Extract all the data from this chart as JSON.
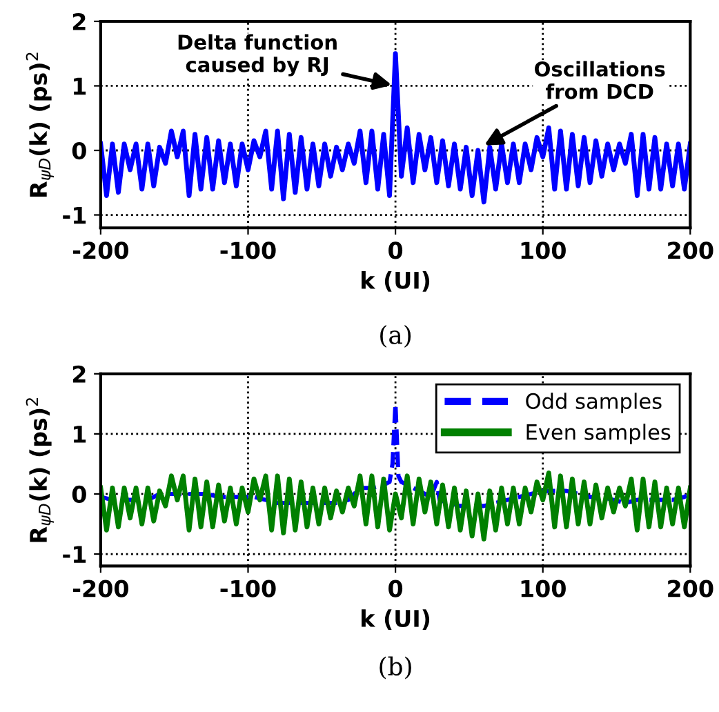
{
  "chart_data": [
    {
      "type": "line",
      "xlabel": "k (UI)",
      "ylabel": "R$_{ψD}$(k) (ps)$^{2}$",
      "xlim": [
        -200,
        200
      ],
      "xticks": [
        -200,
        -100,
        0,
        100,
        200
      ],
      "ylim": [
        -1.2,
        2
      ],
      "yticks": [
        -1,
        0,
        1,
        2
      ],
      "grid": true,
      "line_style": "solid",
      "series": [
        {
          "color": "#0000ff",
          "x": [
            -200,
            -196,
            -192,
            -188,
            -184,
            -180,
            -176,
            -172,
            -168,
            -164,
            -160,
            -156,
            -152,
            -148,
            -144,
            -140,
            -136,
            -132,
            -128,
            -124,
            -120,
            -116,
            -112,
            -108,
            -104,
            -100,
            -96,
            -92,
            -88,
            -84,
            -80,
            -76,
            -72,
            -68,
            -64,
            -60,
            -56,
            -52,
            -48,
            -44,
            -40,
            -36,
            -32,
            -28,
            -24,
            -20,
            -16,
            -12,
            -8,
            -4,
            0,
            4,
            8,
            12,
            16,
            20,
            24,
            28,
            32,
            36,
            40,
            44,
            48,
            52,
            56,
            60,
            64,
            68,
            72,
            76,
            80,
            84,
            88,
            92,
            96,
            100,
            104,
            108,
            112,
            116,
            120,
            124,
            128,
            132,
            136,
            140,
            144,
            148,
            152,
            156,
            160,
            164,
            168,
            172,
            176,
            180,
            184,
            188,
            192,
            196,
            200
          ],
          "values": [
            0.1,
            -0.7,
            0.1,
            -0.65,
            0.1,
            -0.3,
            0.1,
            -0.6,
            0.1,
            -0.55,
            0.05,
            -0.2,
            0.3,
            -0.1,
            0.3,
            -0.7,
            0.25,
            -0.6,
            0.2,
            -0.6,
            0.15,
            -0.5,
            0.1,
            -0.55,
            0.1,
            -0.3,
            0.15,
            -0.1,
            0.3,
            -0.6,
            0.3,
            -0.75,
            0.25,
            -0.65,
            0.2,
            -0.6,
            0.1,
            -0.55,
            0.1,
            -0.4,
            0.05,
            -0.3,
            0.1,
            -0.2,
            0.3,
            -0.5,
            0.3,
            -0.6,
            0.25,
            -0.7,
            1.5,
            -0.4,
            0.35,
            -0.5,
            0.25,
            -0.3,
            0.2,
            -0.5,
            0.15,
            -0.55,
            0.1,
            -0.6,
            0.05,
            -0.7,
            0.0,
            -0.8,
            0.05,
            -0.6,
            0.1,
            -0.5,
            0.1,
            -0.5,
            0.1,
            -0.3,
            0.2,
            -0.1,
            0.35,
            -0.6,
            0.3,
            -0.6,
            0.25,
            -0.55,
            0.2,
            -0.5,
            0.15,
            -0.4,
            0.1,
            -0.3,
            0.1,
            -0.2,
            0.25,
            -0.7,
            0.25,
            -0.6,
            0.2,
            -0.6,
            0.1,
            -0.55,
            0.1,
            -0.6,
            0.1
          ]
        }
      ],
      "annotations": [
        {
          "text": "Delta function\ncaused by RJ",
          "x": 0,
          "y": 1
        },
        {
          "text": "Oscillations\nfrom DCD",
          "x": 58,
          "y": 0.05
        },
        "(a)"
      ]
    },
    {
      "type": "line",
      "xlabel": "k (UI)",
      "ylabel": "R$_{ψD}$(k) (ps)$^{2}$",
      "xlim": [
        -200,
        200
      ],
      "xticks": [
        -200,
        -100,
        0,
        100,
        200
      ],
      "ylim": [
        -1.2,
        2
      ],
      "yticks": [
        -1,
        0,
        1,
        2
      ],
      "grid": true,
      "legend": "top right",
      "series": [
        {
          "name": "Odd samples",
          "color": "#0000ff",
          "line_style": "dashed",
          "x": [
            -200,
            -192,
            -184,
            -176,
            -168,
            -160,
            -152,
            -144,
            -136,
            -128,
            -120,
            -112,
            -104,
            -96,
            -88,
            -80,
            -72,
            -64,
            -56,
            -48,
            -40,
            -32,
            -24,
            -16,
            -8,
            -4,
            -2,
            0,
            2,
            4,
            8,
            16,
            24,
            28,
            30,
            36,
            44,
            52,
            60,
            68,
            76,
            84,
            92,
            100,
            108,
            116,
            124,
            132,
            140,
            148,
            156,
            164,
            172,
            180,
            188,
            196,
            200
          ],
          "values": [
            -0.05,
            -0.1,
            -0.1,
            -0.1,
            -0.1,
            0.0,
            0.0,
            0.0,
            0.0,
            0.0,
            -0.05,
            -0.05,
            -0.05,
            -0.05,
            -0.1,
            -0.15,
            -0.15,
            -0.15,
            -0.15,
            -0.15,
            -0.15,
            -0.1,
            0.1,
            0.1,
            0.15,
            0.2,
            0.5,
            1.5,
            0.3,
            0.2,
            0.15,
            0.05,
            -0.05,
            0.2,
            -0.1,
            -0.15,
            -0.2,
            -0.2,
            -0.2,
            -0.15,
            -0.1,
            -0.05,
            0.0,
            0.05,
            0.05,
            0.05,
            0.0,
            -0.05,
            -0.05,
            -0.1,
            -0.15,
            -0.1,
            -0.1,
            -0.1,
            -0.1,
            -0.05,
            0.0
          ]
        },
        {
          "name": "Even samples",
          "color": "#008000",
          "line_style": "solid",
          "x": [
            -200,
            -196,
            -192,
            -188,
            -184,
            -180,
            -176,
            -172,
            -168,
            -164,
            -160,
            -156,
            -152,
            -148,
            -144,
            -140,
            -136,
            -132,
            -128,
            -124,
            -120,
            -116,
            -112,
            -108,
            -104,
            -100,
            -96,
            -92,
            -88,
            -84,
            -80,
            -76,
            -72,
            -68,
            -64,
            -60,
            -56,
            -52,
            -48,
            -44,
            -40,
            -36,
            -32,
            -28,
            -24,
            -20,
            -16,
            -12,
            -8,
            -4,
            0,
            4,
            8,
            12,
            16,
            20,
            24,
            28,
            32,
            36,
            40,
            44,
            48,
            52,
            56,
            60,
            64,
            68,
            72,
            76,
            80,
            84,
            88,
            92,
            96,
            100,
            104,
            108,
            112,
            116,
            120,
            124,
            128,
            132,
            136,
            140,
            144,
            148,
            152,
            156,
            160,
            164,
            168,
            172,
            176,
            180,
            184,
            188,
            192,
            196,
            200
          ],
          "values": [
            0.1,
            -0.6,
            0.1,
            -0.55,
            0.1,
            -0.4,
            0.1,
            -0.5,
            0.1,
            -0.45,
            0.05,
            -0.2,
            0.3,
            -0.1,
            0.3,
            -0.6,
            0.25,
            -0.55,
            0.2,
            -0.55,
            0.15,
            -0.45,
            0.1,
            -0.5,
            0.1,
            -0.3,
            0.25,
            -0.1,
            0.3,
            -0.6,
            0.3,
            -0.65,
            0.25,
            -0.6,
            0.2,
            -0.55,
            0.1,
            -0.5,
            0.1,
            -0.4,
            0.05,
            -0.3,
            0.1,
            -0.2,
            0.3,
            -0.5,
            0.3,
            -0.55,
            0.25,
            -0.6,
            0.0,
            -0.4,
            0.3,
            -0.5,
            0.25,
            -0.3,
            0.2,
            -0.5,
            0.15,
            -0.55,
            0.1,
            -0.6,
            0.05,
            -0.7,
            0.0,
            -0.75,
            0.05,
            -0.6,
            0.1,
            -0.5,
            0.1,
            -0.5,
            0.1,
            -0.3,
            0.2,
            -0.1,
            0.35,
            -0.55,
            0.3,
            -0.55,
            0.25,
            -0.5,
            0.2,
            -0.5,
            0.15,
            -0.4,
            0.1,
            -0.3,
            0.1,
            -0.2,
            0.25,
            -0.6,
            0.25,
            -0.55,
            0.2,
            -0.55,
            0.1,
            -0.5,
            0.1,
            -0.55,
            0.1
          ]
        }
      ],
      "annotations": [
        "(b)"
      ]
    }
  ]
}
